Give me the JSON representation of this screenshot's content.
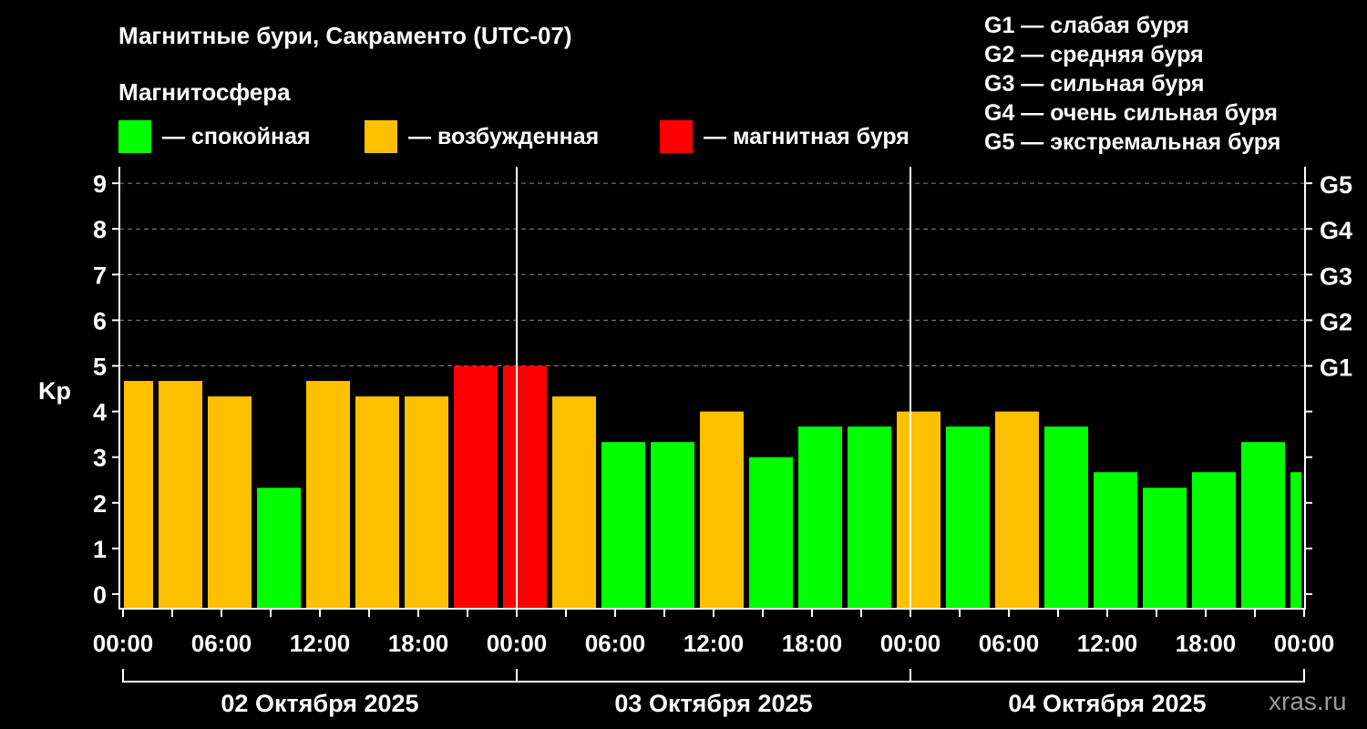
{
  "title": "Магнитные бури, Сакраменто (UTC-07)",
  "legend": {
    "heading": "Магнитосфера",
    "items": [
      {
        "label": "— спокойная",
        "color": "#00ff00"
      },
      {
        "label": "— возбужденная",
        "color": "#ffc000"
      },
      {
        "label": "— магнитная буря",
        "color": "#ff0000"
      }
    ]
  },
  "g_scale": [
    "G1 — слабая буря",
    "G2 — средняя буря",
    "G3 — сильная буря",
    "G4 — очень сильная буря",
    "G5 — экстремальная буря"
  ],
  "watermark": "xras.ru",
  "chart_data": {
    "type": "bar",
    "title": "Магнитные бури, Сакраменто (UTC-07)",
    "ylabel": "Kp",
    "ylim": [
      0,
      9
    ],
    "yticks": [
      "0",
      "1",
      "2",
      "3",
      "4",
      "5",
      "6",
      "7",
      "8",
      "9"
    ],
    "right_ticks": [
      {
        "value": 5,
        "label": "G1"
      },
      {
        "value": 6,
        "label": "G2"
      },
      {
        "value": 7,
        "label": "G3"
      },
      {
        "value": 8,
        "label": "G4"
      },
      {
        "value": 9,
        "label": "G5"
      }
    ],
    "xticks": [
      "00:00",
      "06:00",
      "12:00",
      "18:00",
      "00:00",
      "06:00",
      "12:00",
      "18:00",
      "00:00",
      "06:00",
      "12:00",
      "18:00",
      "00:00"
    ],
    "days": [
      "02 Октября 2025",
      "03 Октября 2025",
      "04 Октября 2025"
    ],
    "bar_start_hours": [
      -1,
      2,
      5,
      8,
      11,
      14,
      17,
      20,
      23,
      26,
      29,
      32,
      35,
      38,
      41,
      44,
      47,
      50,
      53,
      56,
      59,
      62,
      65,
      68,
      71
    ],
    "values": [
      4.67,
      4.67,
      4.33,
      2.33,
      4.67,
      4.33,
      4.33,
      5,
      5,
      4.33,
      3.33,
      3.33,
      4,
      3,
      3.67,
      3.67,
      4,
      3.67,
      4,
      3.67,
      2.67,
      2.33,
      2.67,
      3.33,
      2.67
    ],
    "levels": [
      "excited",
      "excited",
      "excited",
      "quiet",
      "excited",
      "excited",
      "excited",
      "storm",
      "storm",
      "excited",
      "quiet",
      "quiet",
      "excited",
      "quiet",
      "quiet",
      "quiet",
      "excited",
      "quiet",
      "excited",
      "quiet",
      "quiet",
      "quiet",
      "quiet",
      "quiet",
      "quiet"
    ],
    "colors": {
      "quiet": "#00ff00",
      "excited": "#ffc000",
      "storm": "#ff0000"
    },
    "grid": "dashed at 5-9"
  }
}
